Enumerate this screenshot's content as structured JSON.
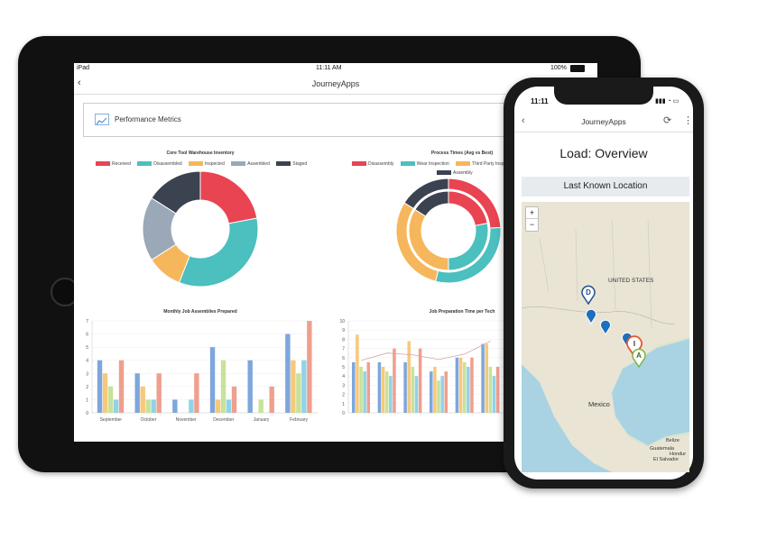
{
  "tablet": {
    "status_left": "iPad",
    "status_time": "11:11 AM",
    "status_battery": "100%",
    "back_label": "‹",
    "app_title": "JourneyApps",
    "section_title": "Performance Metrics",
    "section_icon": "line-chart-icon"
  },
  "chart_data": [
    {
      "type": "pie",
      "variant": "doughnut",
      "title": "Core Tool Warehouse Inventory",
      "labels": [
        "Received",
        "Disassembled",
        "Inspected",
        "Assembled",
        "Staged"
      ],
      "colors": [
        "#e84451",
        "#4cbfbf",
        "#f6b65c",
        "#9aa8b8",
        "#3b4250"
      ],
      "values": [
        22,
        34,
        10,
        18,
        16
      ]
    },
    {
      "type": "pie",
      "variant": "doughnut",
      "title": "Process Times (Avg vs Best)",
      "labels": [
        "Disassembly",
        "Wear Inspection",
        "Third Party Inspection",
        "Assembly"
      ],
      "colors": [
        "#e84451",
        "#4cbfbf",
        "#f6b65c",
        "#3b4250"
      ],
      "series": [
        {
          "name": "Avg",
          "values": [
            24,
            30,
            30,
            16
          ]
        },
        {
          "name": "Best",
          "values": [
            22,
            28,
            34,
            16
          ]
        }
      ]
    },
    {
      "type": "bar",
      "title": "Monthly Job Assemblies Prepared",
      "categories": [
        "September",
        "October",
        "November",
        "December",
        "January",
        "February"
      ],
      "colors": [
        "#7fa6dc",
        "#f6c97a",
        "#c7e29a",
        "#8fd3e8",
        "#ef9f8e"
      ],
      "series": [
        {
          "name": "s1",
          "values": [
            4,
            3,
            1,
            5,
            4,
            6
          ]
        },
        {
          "name": "s2",
          "values": [
            3,
            2,
            0,
            1,
            0,
            4
          ]
        },
        {
          "name": "s3",
          "values": [
            2,
            1,
            0,
            4,
            1,
            3
          ]
        },
        {
          "name": "s4",
          "values": [
            1,
            1,
            1,
            1,
            0,
            4
          ]
        },
        {
          "name": "s5",
          "values": [
            4,
            3,
            3,
            2,
            2,
            7
          ]
        }
      ],
      "ylim": [
        0,
        7
      ],
      "yticks": [
        0,
        1,
        2,
        3,
        4,
        5,
        6,
        7
      ]
    },
    {
      "type": "bar",
      "title": "Job Preparation Time per Tech",
      "categories": [
        "T1",
        "T2",
        "T3",
        "T4",
        "T5",
        "T6"
      ],
      "colors": [
        "#7fa6dc",
        "#f6c97a",
        "#c7e29a",
        "#8fd3e8",
        "#ef9f8e"
      ],
      "series": [
        {
          "name": "s1",
          "values": [
            5.5,
            5.5,
            5.5,
            4.5,
            6,
            7.5
          ]
        },
        {
          "name": "s2",
          "values": [
            8.5,
            5,
            7.8,
            5,
            6,
            7.5
          ]
        },
        {
          "name": "s3",
          "values": [
            5,
            4.5,
            5,
            3.5,
            5.5,
            5
          ]
        },
        {
          "name": "s4",
          "values": [
            4.5,
            4,
            4,
            4,
            5,
            4
          ]
        },
        {
          "name": "s5",
          "values": [
            5.5,
            7,
            7,
            4.5,
            6,
            5
          ]
        }
      ],
      "line": [
        5.7,
        6.5,
        6.3,
        5.8,
        6.4,
        7.8
      ],
      "ylim": [
        0,
        10
      ],
      "yticks": [
        0,
        1,
        2,
        3,
        4,
        5,
        6,
        7,
        8,
        9,
        10
      ]
    }
  ],
  "phone": {
    "status_time": "11:11",
    "status_icons": "▮▮▮ ◔ ▭",
    "back_label": "‹",
    "app_title": "JourneyApps",
    "refresh_icon": "refresh-icon",
    "more_icon": "more-vertical-icon",
    "page_heading": "Load: Overview",
    "section_label": "Last Known Location",
    "zoom_in": "+",
    "zoom_out": "−",
    "map_labels": {
      "country": "UNITED\nSTATES",
      "mexico": "Mexico",
      "belize": "Belize",
      "guatemala": "Guatemala",
      "honduras": "Hondur",
      "elsalvador": "El Salvador"
    },
    "markers": [
      {
        "label": "D",
        "color": "#1e6fbf"
      },
      {
        "label": "",
        "color": "#1e6fbf"
      },
      {
        "label": "",
        "color": "#1e6fbf"
      },
      {
        "label": "",
        "color": "#1e6fbf"
      },
      {
        "label": "I",
        "color": "#e4572e"
      },
      {
        "label": "A",
        "color": "#7cb342"
      }
    ]
  }
}
